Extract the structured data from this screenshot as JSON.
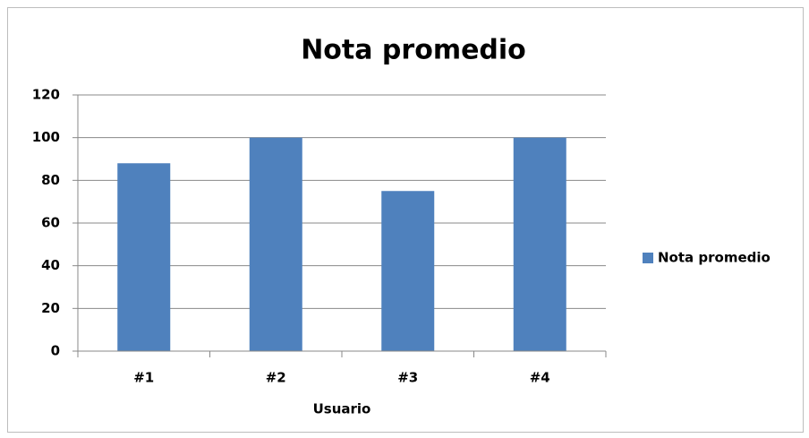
{
  "chart_data": {
    "type": "bar",
    "title": "Nota promedio",
    "x_label": "Usuario",
    "categories": [
      "#1",
      "#2",
      "#3",
      "#4"
    ],
    "series": [
      {
        "name": "Nota promedio",
        "color": "#4f81bd",
        "values": [
          88,
          100,
          75,
          100
        ]
      }
    ],
    "ylim": [
      0,
      120
    ],
    "yticks": [
      0,
      20,
      40,
      60,
      80,
      100,
      120
    ],
    "grid": true,
    "legend": "right"
  }
}
